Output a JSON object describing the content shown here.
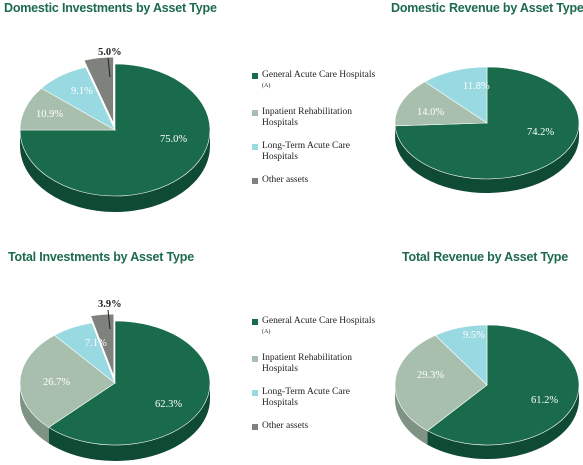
{
  "legend": [
    {
      "label": "General Acute Care Hospitals",
      "sup": "(A)",
      "color": "#1a6a4c"
    },
    {
      "label": "Inpatient Rehabilitation Hospitals",
      "color": "#a9bfae"
    },
    {
      "label": "Long-Term Acute Care Hospitals",
      "color": "#99d9e1"
    },
    {
      "label": "Other assets",
      "color": "#7f817c"
    }
  ],
  "chart_data": [
    {
      "type": "pie",
      "title": "Domestic Investments by Asset Type",
      "categories": [
        "General Acute Care Hospitals (A)",
        "Inpatient Rehabilitation Hospitals",
        "Long-Term Acute Care Hospitals",
        "Other assets"
      ],
      "values": [
        75.0,
        10.9,
        9.1,
        5.0
      ],
      "labels": [
        "75.0%",
        "10.9%",
        "9.1%",
        "5.0%"
      ]
    },
    {
      "type": "pie",
      "title": "Domestic Revenue by Asset Type",
      "categories": [
        "General Acute Care Hospitals (A)",
        "Inpatient Rehabilitation Hospitals",
        "Long-Term Acute Care Hospitals"
      ],
      "values": [
        74.2,
        14.0,
        11.8
      ],
      "labels": [
        "74.2%",
        "14.0%",
        "11.8%"
      ]
    },
    {
      "type": "pie",
      "title": "Total Investments by Asset Type",
      "categories": [
        "General Acute Care Hospitals (A)",
        "Inpatient Rehabilitation Hospitals",
        "Long-Term Acute Care Hospitals",
        "Other assets"
      ],
      "values": [
        62.3,
        26.7,
        7.1,
        3.9
      ],
      "labels": [
        "62.3%",
        "26.7%",
        "7.1%",
        "3.9%"
      ]
    },
    {
      "type": "pie",
      "title": "Total Revenue by Asset Type",
      "categories": [
        "General Acute Care Hospitals (A)",
        "Inpatient Rehabilitation Hospitals",
        "Long-Term Acute Care Hospitals"
      ],
      "values": [
        61.2,
        29.3,
        9.5
      ],
      "labels": [
        "61.2%",
        "29.3%",
        "9.5%"
      ]
    }
  ]
}
